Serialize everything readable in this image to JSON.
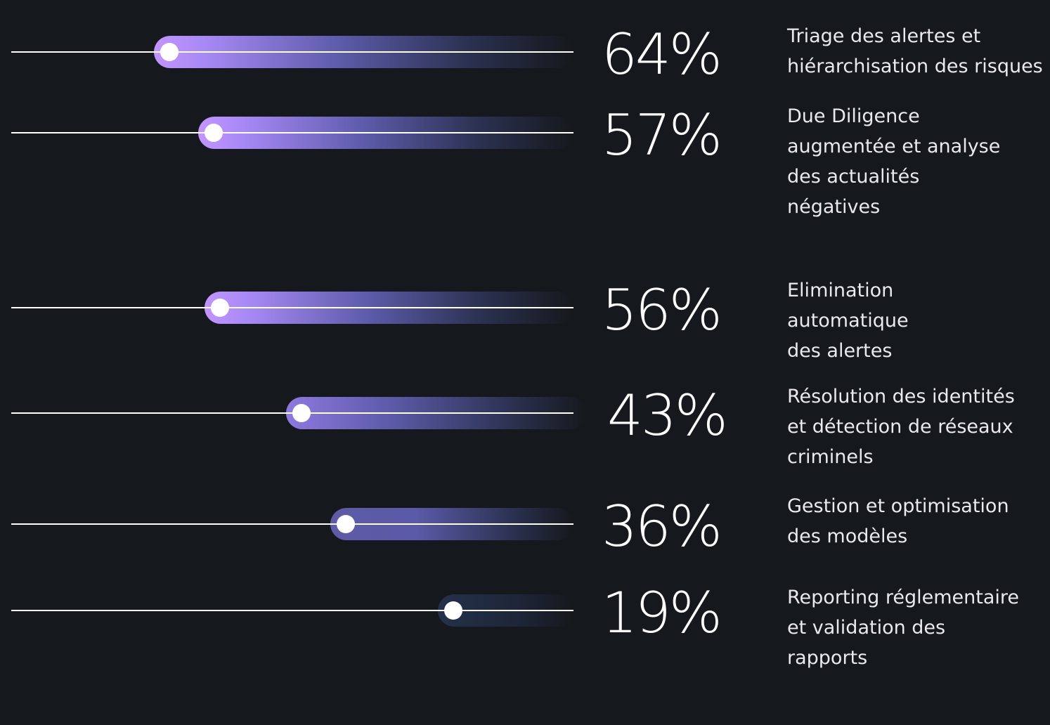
{
  "chart_data": {
    "type": "bar",
    "orientation": "horizontal",
    "unit": "%",
    "xlim": [
      0,
      100
    ],
    "categories": [
      "Triage des alertes et\nhiérarchisation des risques",
      "Due Diligence\naugmentée et analyse\ndes actualités\nnégatives",
      "Elimination\nautomatique\ndes alertes",
      "Résolution des identités\net détection de réseaux\ncriminels",
      "Gestion et optimisation\ndes modèles",
      "Reporting réglementaire\net validation des\nrapports"
    ],
    "values": [
      64,
      57,
      56,
      43,
      36,
      19
    ],
    "value_labels": [
      "64%",
      "57%",
      "56%",
      "43%",
      "36%",
      "19%"
    ],
    "grid": false,
    "legend": "none"
  },
  "colors": {
    "background": "#15181c",
    "bar_start": "#c395ff",
    "bar_mid": "#5b5aa8",
    "bar_end": "#15181c",
    "line": "#ffffff",
    "text": "#ffffff"
  }
}
